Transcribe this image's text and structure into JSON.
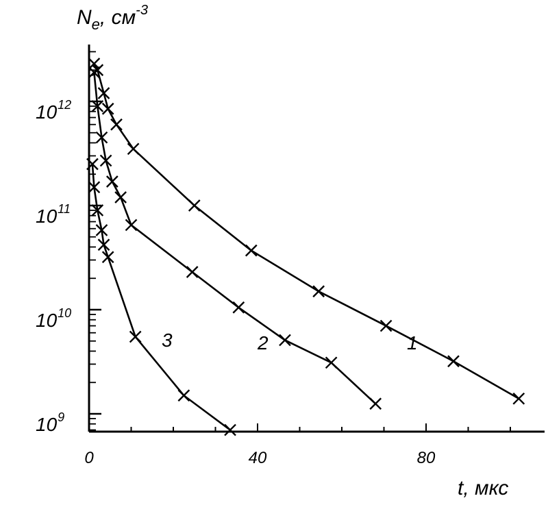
{
  "chart_data": {
    "type": "scatter",
    "title": "",
    "ylabel": {
      "base": "N",
      "sub": "e",
      "rest": ", см",
      "sup": "-3"
    },
    "xlabel": "t, мкс",
    "y_scale": "log",
    "xlim": [
      0,
      108
    ],
    "ylim": [
      700000000,
      2500000000000
    ],
    "x_ticks": [
      "0",
      "40",
      "80"
    ],
    "y_ticks": [
      {
        "base": "10",
        "exp": "9"
      },
      {
        "base": "10",
        "exp": "10"
      },
      {
        "base": "10",
        "exp": "11"
      },
      {
        "base": "10",
        "exp": "12"
      }
    ],
    "grid": false,
    "series": [
      {
        "name": "1",
        "points": [
          [
            1.2,
            2300000000000.0
          ],
          [
            2.0,
            2000000000000.0
          ],
          [
            3.5,
            1200000000000.0
          ],
          [
            4.5,
            850000000000.0
          ],
          [
            6.5,
            600000000000.0
          ],
          [
            10.5,
            350000000000.0
          ],
          [
            25,
            100000000000.0
          ],
          [
            38.5,
            37000000000.0
          ],
          [
            54.5,
            15000000000.0
          ],
          [
            70.5,
            7000000000.0
          ],
          [
            86.5,
            3200000000.0
          ],
          [
            102,
            1400000000.0
          ]
        ]
      },
      {
        "name": "2",
        "points": [
          [
            1.2,
            1900000000000.0
          ],
          [
            2.0,
            900000000000.0
          ],
          [
            3.0,
            450000000000.0
          ],
          [
            4.0,
            270000000000.0
          ],
          [
            5.5,
            170000000000.0
          ],
          [
            7.5,
            120000000000.0
          ],
          [
            10,
            65000000000.0
          ],
          [
            24.5,
            23000000000.0
          ],
          [
            35.5,
            10500000000.0
          ],
          [
            46.5,
            5100000000.0
          ],
          [
            57.5,
            3100000000.0
          ],
          [
            68,
            1250000000.0
          ]
        ]
      },
      {
        "name": "3",
        "points": [
          [
            0.8,
            250000000000.0
          ],
          [
            1.2,
            150000000000.0
          ],
          [
            2.0,
            90000000000.0
          ],
          [
            3.0,
            58000000000.0
          ],
          [
            3.5,
            42000000000.0
          ],
          [
            4.5,
            32000000000.0
          ],
          [
            11,
            5500000000.0
          ],
          [
            22.5,
            1500000000.0
          ],
          [
            33.5,
            700000000.0
          ]
        ]
      }
    ]
  }
}
